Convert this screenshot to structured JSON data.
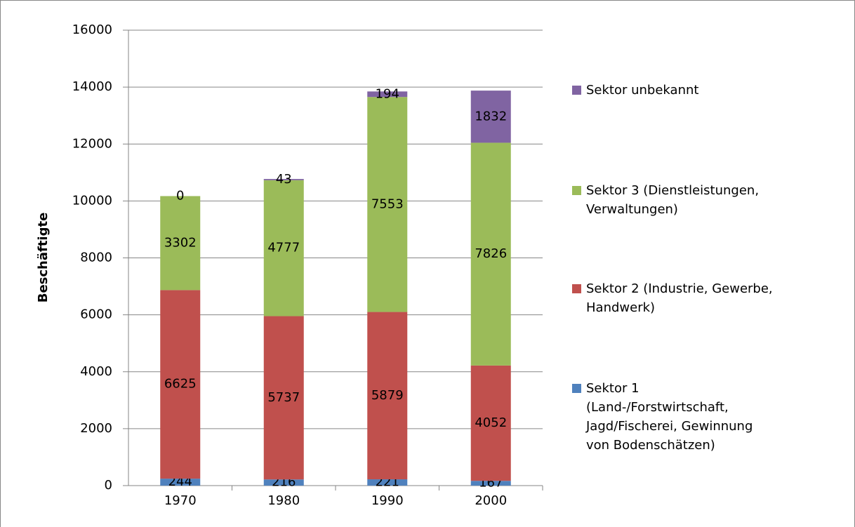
{
  "chart_data": {
    "type": "stacked_bar",
    "y_label": "Beschäftigte",
    "categories": [
      "1970",
      "1980",
      "1990",
      "2000"
    ],
    "series": [
      {
        "name": "Sektor 1 (Land-/Forstwirtschaft, Jagd/Fischerei, Gewinnung von Bodenschätzen)",
        "color": "#4f81bd",
        "values": [
          244,
          216,
          221,
          167
        ]
      },
      {
        "name": "Sektor 2 (Industrie, Gewerbe, Handwerk)",
        "color": "#c0504d",
        "values": [
          6625,
          5737,
          5879,
          4052
        ]
      },
      {
        "name": "Sektor 3 (Dienstleistungen, Verwaltungen)",
        "color": "#9bbb59",
        "values": [
          3302,
          4777,
          7553,
          7826
        ]
      },
      {
        "name": "Sektor unbekannt",
        "color": "#8064a2",
        "values": [
          0,
          43,
          194,
          1832
        ]
      }
    ],
    "ylim": [
      0,
      16000
    ],
    "yticks": [
      0,
      2000,
      4000,
      6000,
      8000,
      10000,
      12000,
      14000,
      16000
    ],
    "grid": true,
    "legend": "right"
  }
}
